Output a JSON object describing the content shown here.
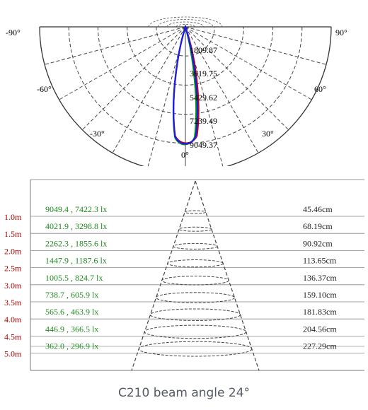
{
  "polar": {
    "angle_labels": {
      "left_90": "-90°",
      "right_90": "90°",
      "left_60": "-60°",
      "right_60": "60°",
      "left_30": "-30°",
      "right_30": "30°",
      "zero": "0°"
    },
    "radial_labels": [
      "1809.87",
      "3619.75",
      "5429.62",
      "7239.49",
      "9049.37"
    ],
    "curve_colors": [
      "#cc0000",
      "#00a000",
      "#1a1aee"
    ]
  },
  "beam": {
    "rows": [
      {
        "distance": "1.0m",
        "lux": "9049.4 , 7422.3 lx",
        "diameter": "45.46cm"
      },
      {
        "distance": "1.5m",
        "lux": "4021.9 , 3298.8 lx",
        "diameter": "68.19cm"
      },
      {
        "distance": "2.0m",
        "lux": "2262.3 , 1855.6 lx",
        "diameter": "90.92cm"
      },
      {
        "distance": "2.5m",
        "lux": "1447.9 , 1187.6 lx",
        "diameter": "113.65cm"
      },
      {
        "distance": "3.0m",
        "lux": "1005.5 , 824.7 lx",
        "diameter": "136.37cm"
      },
      {
        "distance": "3.5m",
        "lux": "738.7 , 605.9 lx",
        "diameter": "159.10cm"
      },
      {
        "distance": "4.0m",
        "lux": "565.6 , 463.9 lx",
        "diameter": "181.83cm"
      },
      {
        "distance": "4.5m",
        "lux": "446.9 , 366.5 lx",
        "diameter": "204.56cm"
      },
      {
        "distance": "5.0m",
        "lux": "362.0 , 296.9 lx",
        "diameter": "227.29cm"
      }
    ],
    "distance_color": "#b00000",
    "lux_color": "#1f8a1f"
  },
  "caption": "C210 beam angle 24°"
}
